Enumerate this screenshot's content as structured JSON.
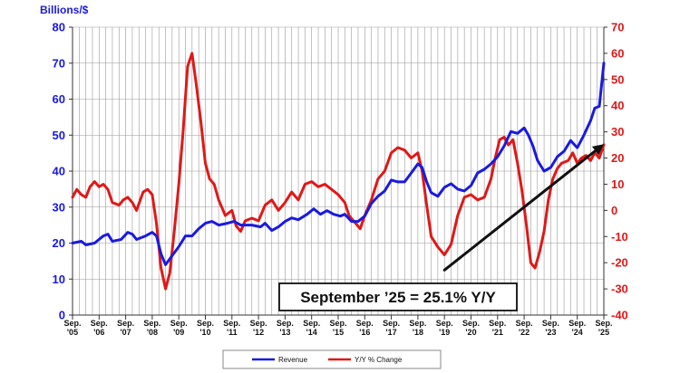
{
  "chart_data": {
    "type": "line",
    "unit_label": "Billions/$",
    "left_axis": {
      "min": 0,
      "max": 80,
      "step": 10,
      "ticks": [
        "0",
        "10",
        "20",
        "30",
        "40",
        "50",
        "60",
        "70",
        "80"
      ]
    },
    "right_axis": {
      "min": -40,
      "max": 70,
      "step": 10,
      "ticks": [
        "-40",
        "-30",
        "-20",
        "-10",
        "0",
        "10",
        "20",
        "30",
        "40",
        "50",
        "60",
        "70"
      ]
    },
    "x_range": [
      2005.67,
      2025.67
    ],
    "x_labels": [
      [
        "Sep.",
        "'05"
      ],
      [
        "Sep.",
        "'06"
      ],
      [
        "Sep.",
        "'07"
      ],
      [
        "Sep.",
        "'08"
      ],
      [
        "Sep.",
        "'09"
      ],
      [
        "Sep.",
        "'10"
      ],
      [
        "Sep.",
        "'11"
      ],
      [
        "Sep.",
        "'12"
      ],
      [
        "Sep.",
        "'13"
      ],
      [
        "Sep.",
        "'14"
      ],
      [
        "Sep.",
        "'15"
      ],
      [
        "Sep.",
        "'16"
      ],
      [
        "Sep.",
        "'17"
      ],
      [
        "Sep.",
        "'18"
      ],
      [
        "Sep.",
        "'19"
      ],
      [
        "Sep.",
        "'20"
      ],
      [
        "Sep.",
        "'21"
      ],
      [
        "Sep.",
        "'22"
      ],
      [
        "Sep.",
        "'23"
      ],
      [
        "Sep.",
        "'24"
      ],
      [
        "Sep.",
        "'25"
      ]
    ],
    "grid": true,
    "series": [
      {
        "name": "Revenue",
        "axis": "left",
        "color": "#1a1adf",
        "points": [
          [
            2005.67,
            20
          ],
          [
            2006.0,
            20.5
          ],
          [
            2006.17,
            19.5
          ],
          [
            2006.5,
            20
          ],
          [
            2006.83,
            22
          ],
          [
            2007.0,
            22.5
          ],
          [
            2007.17,
            20.5
          ],
          [
            2007.5,
            21
          ],
          [
            2007.75,
            23
          ],
          [
            2007.92,
            22.5
          ],
          [
            2008.08,
            21
          ],
          [
            2008.42,
            22
          ],
          [
            2008.67,
            23
          ],
          [
            2008.83,
            22
          ],
          [
            2009.0,
            17
          ],
          [
            2009.17,
            14
          ],
          [
            2009.42,
            16.5
          ],
          [
            2009.67,
            19
          ],
          [
            2009.92,
            22
          ],
          [
            2010.17,
            22
          ],
          [
            2010.42,
            24
          ],
          [
            2010.67,
            25.5
          ],
          [
            2010.92,
            26
          ],
          [
            2011.17,
            25
          ],
          [
            2011.5,
            25.5
          ],
          [
            2011.75,
            26
          ],
          [
            2012.0,
            25
          ],
          [
            2012.42,
            25
          ],
          [
            2012.75,
            24.5
          ],
          [
            2012.92,
            25.5
          ],
          [
            2013.17,
            23.5
          ],
          [
            2013.42,
            24.5
          ],
          [
            2013.67,
            26
          ],
          [
            2013.92,
            27
          ],
          [
            2014.17,
            26.5
          ],
          [
            2014.5,
            28
          ],
          [
            2014.75,
            29.5
          ],
          [
            2015.0,
            28
          ],
          [
            2015.25,
            29
          ],
          [
            2015.5,
            28
          ],
          [
            2015.75,
            27.5
          ],
          [
            2015.92,
            28
          ],
          [
            2016.17,
            26
          ],
          [
            2016.42,
            26
          ],
          [
            2016.67,
            27.5
          ],
          [
            2016.92,
            31
          ],
          [
            2017.17,
            33
          ],
          [
            2017.42,
            34.5
          ],
          [
            2017.67,
            37.5
          ],
          [
            2017.92,
            37
          ],
          [
            2018.17,
            37
          ],
          [
            2018.42,
            39.5
          ],
          [
            2018.67,
            42
          ],
          [
            2018.83,
            41
          ],
          [
            2019.0,
            37
          ],
          [
            2019.17,
            34
          ],
          [
            2019.42,
            33
          ],
          [
            2019.67,
            35.5
          ],
          [
            2019.92,
            36.5
          ],
          [
            2020.17,
            35
          ],
          [
            2020.42,
            34.5
          ],
          [
            2020.67,
            36
          ],
          [
            2020.92,
            39.5
          ],
          [
            2021.17,
            40.5
          ],
          [
            2021.42,
            42
          ],
          [
            2021.67,
            44
          ],
          [
            2021.92,
            47
          ],
          [
            2022.17,
            51
          ],
          [
            2022.42,
            50.5
          ],
          [
            2022.67,
            52
          ],
          [
            2022.83,
            50
          ],
          [
            2023.0,
            47
          ],
          [
            2023.17,
            43
          ],
          [
            2023.42,
            40
          ],
          [
            2023.67,
            41
          ],
          [
            2023.92,
            44
          ],
          [
            2024.17,
            45.5
          ],
          [
            2024.42,
            48.5
          ],
          [
            2024.67,
            46.5
          ],
          [
            2024.92,
            50
          ],
          [
            2025.17,
            54
          ],
          [
            2025.33,
            57.5
          ],
          [
            2025.5,
            58
          ],
          [
            2025.67,
            70
          ]
        ]
      },
      {
        "name": "Y/Y % Change",
        "axis": "right",
        "color": "#e01818",
        "points": [
          [
            2005.67,
            5
          ],
          [
            2005.83,
            8
          ],
          [
            2006.0,
            6
          ],
          [
            2006.17,
            5
          ],
          [
            2006.33,
            9
          ],
          [
            2006.5,
            11
          ],
          [
            2006.67,
            9
          ],
          [
            2006.83,
            10
          ],
          [
            2007.0,
            8
          ],
          [
            2007.17,
            3
          ],
          [
            2007.42,
            2
          ],
          [
            2007.58,
            4
          ],
          [
            2007.75,
            5
          ],
          [
            2007.92,
            3
          ],
          [
            2008.08,
            0
          ],
          [
            2008.33,
            7
          ],
          [
            2008.5,
            8
          ],
          [
            2008.67,
            6
          ],
          [
            2008.83,
            -5
          ],
          [
            2009.0,
            -22
          ],
          [
            2009.17,
            -30
          ],
          [
            2009.33,
            -24
          ],
          [
            2009.5,
            -8
          ],
          [
            2009.67,
            10
          ],
          [
            2009.83,
            30
          ],
          [
            2010.0,
            55
          ],
          [
            2010.17,
            60
          ],
          [
            2010.33,
            48
          ],
          [
            2010.5,
            34
          ],
          [
            2010.67,
            18
          ],
          [
            2010.83,
            12
          ],
          [
            2011.0,
            10
          ],
          [
            2011.17,
            4
          ],
          [
            2011.42,
            -2
          ],
          [
            2011.67,
            0
          ],
          [
            2011.83,
            -6
          ],
          [
            2012.0,
            -8
          ],
          [
            2012.17,
            -4
          ],
          [
            2012.42,
            -3
          ],
          [
            2012.67,
            -4
          ],
          [
            2012.92,
            2
          ],
          [
            2013.17,
            4
          ],
          [
            2013.42,
            0
          ],
          [
            2013.67,
            3
          ],
          [
            2013.92,
            7
          ],
          [
            2014.17,
            4
          ],
          [
            2014.42,
            10
          ],
          [
            2014.67,
            11
          ],
          [
            2014.92,
            9
          ],
          [
            2015.17,
            10
          ],
          [
            2015.42,
            8
          ],
          [
            2015.67,
            6
          ],
          [
            2015.92,
            3
          ],
          [
            2016.08,
            -2
          ],
          [
            2016.33,
            -5
          ],
          [
            2016.5,
            -7
          ],
          [
            2016.67,
            -2
          ],
          [
            2016.92,
            4
          ],
          [
            2017.17,
            12
          ],
          [
            2017.42,
            15
          ],
          [
            2017.67,
            22
          ],
          [
            2017.92,
            24
          ],
          [
            2018.17,
            23
          ],
          [
            2018.42,
            20
          ],
          [
            2018.67,
            22
          ],
          [
            2018.83,
            15
          ],
          [
            2019.0,
            2
          ],
          [
            2019.17,
            -10
          ],
          [
            2019.42,
            -14
          ],
          [
            2019.67,
            -17
          ],
          [
            2019.92,
            -13
          ],
          [
            2020.17,
            -2
          ],
          [
            2020.42,
            5
          ],
          [
            2020.67,
            6
          ],
          [
            2020.92,
            4
          ],
          [
            2021.17,
            5
          ],
          [
            2021.42,
            12
          ],
          [
            2021.58,
            20
          ],
          [
            2021.75,
            27
          ],
          [
            2021.92,
            28
          ],
          [
            2022.08,
            25
          ],
          [
            2022.25,
            27
          ],
          [
            2022.42,
            18
          ],
          [
            2022.58,
            8
          ],
          [
            2022.75,
            -5
          ],
          [
            2022.92,
            -20
          ],
          [
            2023.08,
            -22
          ],
          [
            2023.25,
            -16
          ],
          [
            2023.42,
            -8
          ],
          [
            2023.58,
            4
          ],
          [
            2023.75,
            12
          ],
          [
            2023.92,
            16
          ],
          [
            2024.08,
            18
          ],
          [
            2024.33,
            19
          ],
          [
            2024.5,
            22
          ],
          [
            2024.67,
            18
          ],
          [
            2024.83,
            20
          ],
          [
            2025.0,
            21
          ],
          [
            2025.17,
            19
          ],
          [
            2025.33,
            22
          ],
          [
            2025.5,
            20
          ],
          [
            2025.67,
            25.1
          ]
        ]
      }
    ],
    "trend_arrow": {
      "axis": "left",
      "from": [
        2019.67,
        12.5
      ],
      "to": [
        2025.67,
        47.5
      ]
    },
    "annotation": "September ’25 = 25.1% Y/Y",
    "legend": [
      "Revenue",
      "Y/Y % Change"
    ]
  }
}
